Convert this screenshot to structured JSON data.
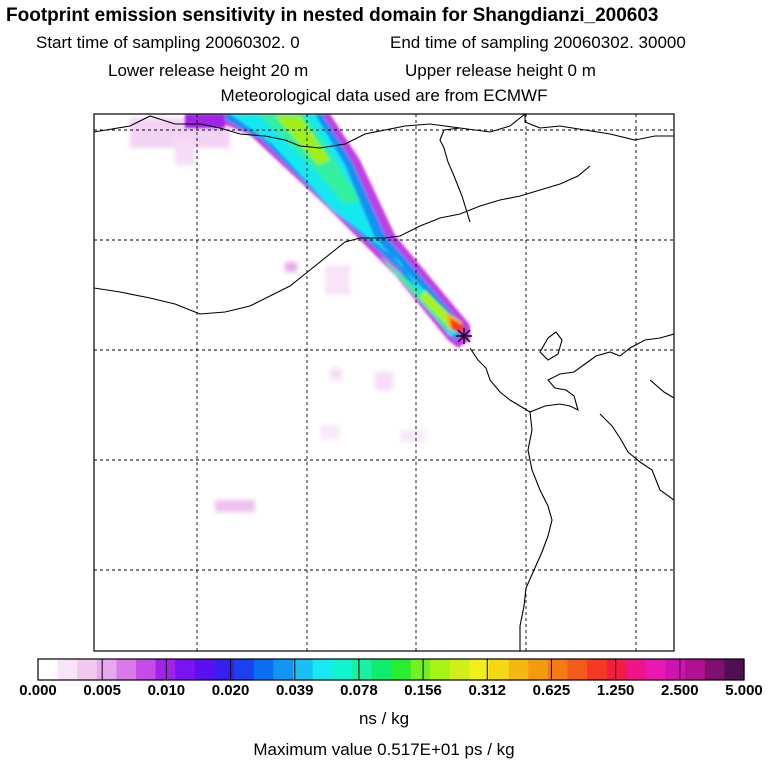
{
  "title": "Footprint emission sensitivity in nested domain for Shangdianzi_200603",
  "sampling": {
    "start": "Start time of sampling 20060302.     0",
    "end": "End time of sampling 20060302. 30000"
  },
  "release": {
    "lower": "Lower release height   20 m",
    "upper": "Upper release height    0 m"
  },
  "met_source": "Meteorological data used are from ECMWF",
  "colorbar": {
    "colors": [
      "#ffffff",
      "#f8e4f8",
      "#f0c8f0",
      "#e6a8ee",
      "#d87ae8",
      "#c44ce8",
      "#a222ea",
      "#7a14ee",
      "#5a10f0",
      "#3520f0",
      "#1a40f0",
      "#0a6ef2",
      "#1296f4",
      "#18c0f4",
      "#18e8f0",
      "#10f4d2",
      "#18f0a2",
      "#10ec6e",
      "#28ee30",
      "#72f020",
      "#a6f418",
      "#cef018",
      "#f0f018",
      "#f4d814",
      "#f4b810",
      "#f49a10",
      "#f47a14",
      "#f45a1a",
      "#f43a22",
      "#f41c42",
      "#f0148a",
      "#e818b0",
      "#d012b0",
      "#b01092",
      "#801070",
      "#501052"
    ],
    "tick_labels": [
      "0.000",
      "0.005",
      "0.010",
      "0.020",
      "0.039",
      "0.078",
      "0.156",
      "0.312",
      "0.625",
      "1.250",
      "2.500",
      "5.000"
    ],
    "unit": "ns / kg"
  },
  "max_value": "Maximum value  0.517E+01 ps / kg",
  "receptor_marker": "star",
  "colors": {
    "border": "#000000",
    "grid": "#000000"
  }
}
